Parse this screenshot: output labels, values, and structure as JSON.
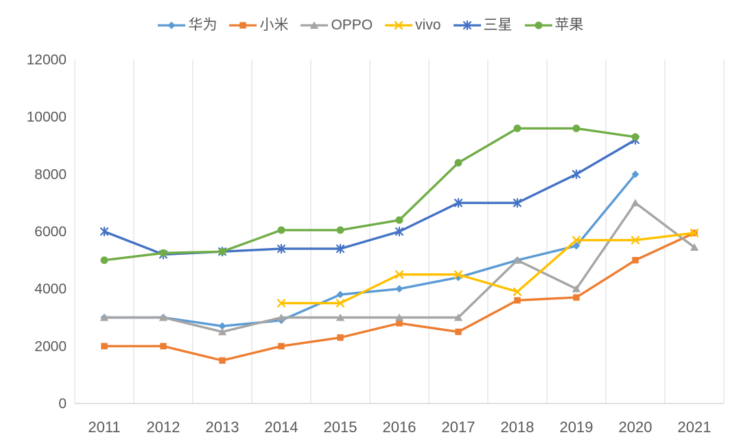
{
  "chart_data": {
    "type": "line",
    "title": "",
    "xlabel": "",
    "ylabel": "",
    "categories": [
      "2011",
      "2012",
      "2013",
      "2014",
      "2015",
      "2016",
      "2017",
      "2018",
      "2019",
      "2020",
      "2021"
    ],
    "series": [
      {
        "name": "华为",
        "color": "#5B9BD5",
        "marker": "diamond",
        "values": [
          3000,
          3000,
          2700,
          2900,
          3800,
          4000,
          4400,
          5000,
          5500,
          8000,
          null
        ]
      },
      {
        "name": "小米",
        "color": "#ED7D31",
        "marker": "square",
        "values": [
          2000,
          2000,
          1500,
          2000,
          2300,
          2800,
          2500,
          3600,
          3700,
          5000,
          5950
        ]
      },
      {
        "name": "OPPO",
        "color": "#A5A5A5",
        "marker": "triangle",
        "values": [
          3000,
          3000,
          2500,
          3000,
          3000,
          3000,
          3000,
          5000,
          4000,
          7000,
          5450
        ]
      },
      {
        "name": "vivo",
        "color": "#FFC000",
        "marker": "x",
        "values": [
          null,
          null,
          null,
          3500,
          3500,
          4500,
          4500,
          3900,
          5700,
          5700,
          5950
        ]
      },
      {
        "name": "三星",
        "color": "#4472C4",
        "marker": "asterisk",
        "values": [
          6000,
          5200,
          5300,
          5400,
          5400,
          6000,
          7000,
          7000,
          8000,
          9200,
          null
        ]
      },
      {
        "name": "苹果",
        "color": "#70AD47",
        "marker": "circle",
        "values": [
          5000,
          5250,
          5300,
          6050,
          6050,
          6400,
          8400,
          9600,
          9600,
          9300,
          null
        ]
      }
    ],
    "ylim": [
      0,
      12000
    ],
    "yticks": [
      0,
      2000,
      4000,
      6000,
      8000,
      10000,
      12000
    ],
    "grid": "vertical-only",
    "legend_position": "top-center",
    "axis_label_color": "#595959",
    "gridline_color": "#D9D9D9",
    "background_color": "#FFFFFF"
  }
}
